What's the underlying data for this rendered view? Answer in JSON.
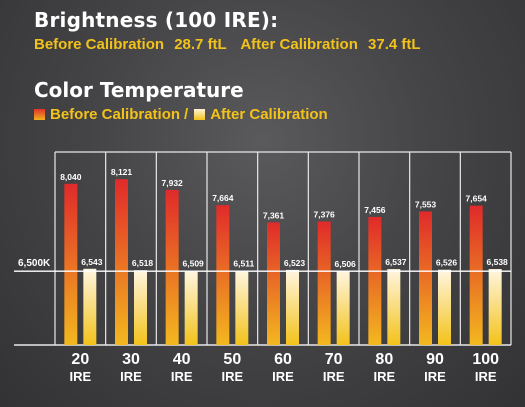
{
  "header": {
    "brightness_title": "Brightness (100 IRE):",
    "before_label": "Before Calibration",
    "before_value": "28.7 ftL",
    "after_label": "After Calibration",
    "after_value": "37.4 ftL",
    "color_temp_title": "Color Temperature",
    "legend_before": "Before Calibration",
    "legend_separator": "/",
    "legend_after": "After Calibration"
  },
  "colors": {
    "before_top": "#e02a2a",
    "before_bottom": "#f3b81f",
    "after_top": "#fff6e0",
    "after_bottom": "#f3c21a",
    "label_text": "#ffffff",
    "accent_text": "#f3c21a",
    "background": "#454547"
  },
  "chart_data": {
    "type": "bar",
    "title": "Color Temperature",
    "categories": [
      "20",
      "30",
      "40",
      "50",
      "60",
      "70",
      "80",
      "90",
      "100"
    ],
    "category_unit": "IRE",
    "series": [
      {
        "name": "Before Calibration",
        "values": [
          8040,
          8121,
          7932,
          7664,
          7361,
          7376,
          7456,
          7553,
          7654
        ],
        "labels": [
          "8,040",
          "8,121",
          "7,932",
          "7,664",
          "7,361",
          "7,376",
          "7,456",
          "7,553",
          "7,654"
        ]
      },
      {
        "name": "After Calibration",
        "values": [
          6543,
          6518,
          6509,
          6511,
          6523,
          6506,
          6537,
          6526,
          6538
        ],
        "labels": [
          "6,543",
          "6,518",
          "6,509",
          "6,511",
          "6,523",
          "6,506",
          "6,537",
          "6,526",
          "6,538"
        ]
      }
    ],
    "reference_line": {
      "value": 6500,
      "label": "6,500K"
    },
    "ylim": [
      5200,
      8600
    ],
    "grid": "vertical separators",
    "legend": "top-left"
  }
}
